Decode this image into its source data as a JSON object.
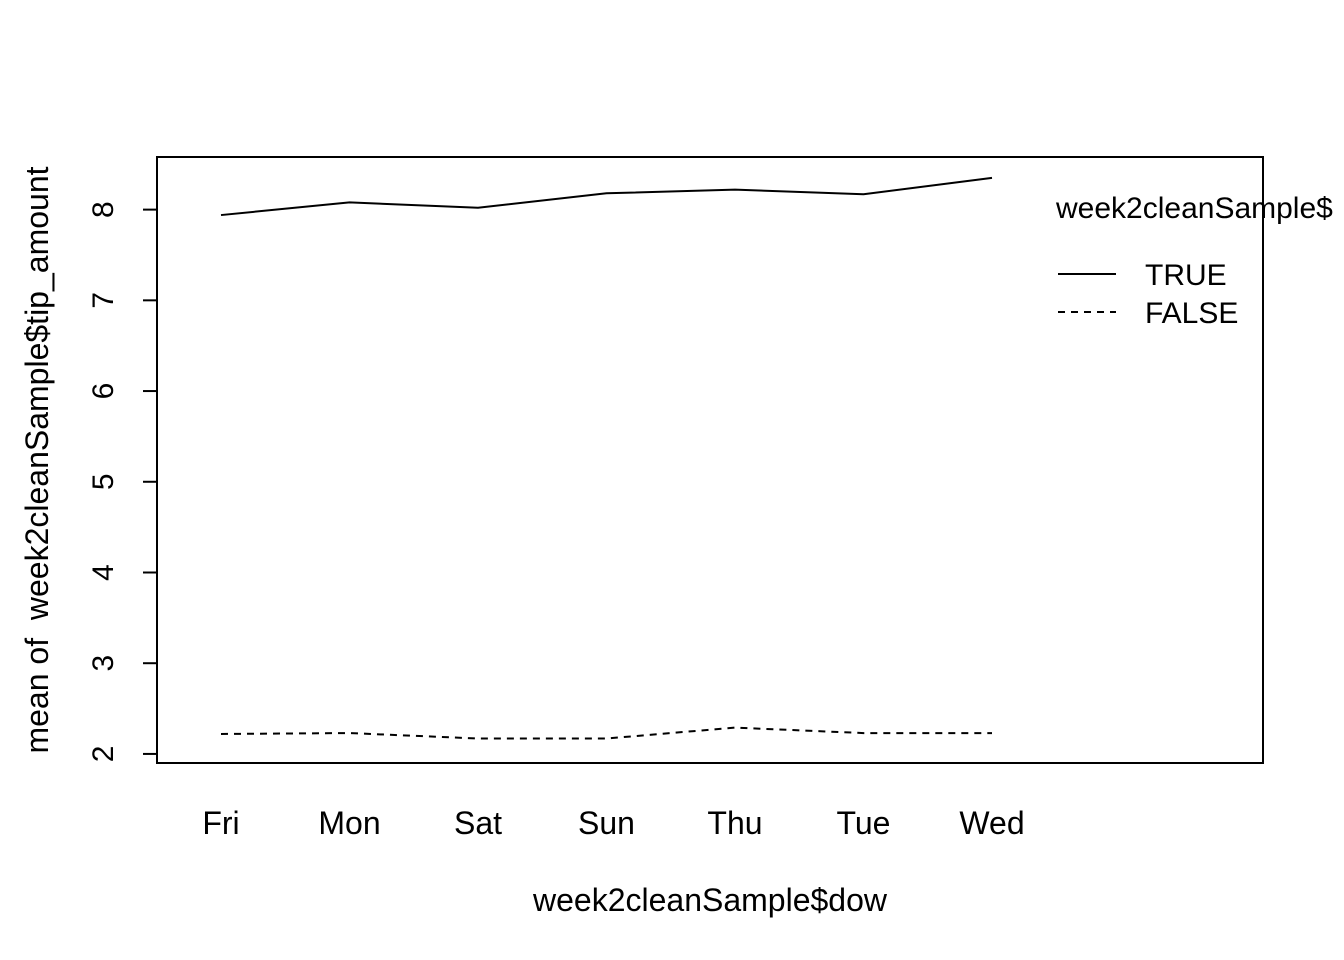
{
  "chart_data": {
    "type": "line",
    "title": "",
    "xlabel": "week2cleanSample$dow",
    "ylabel": "mean of  week2cleanSample$tip_amount",
    "categories": [
      "Fri",
      "Mon",
      "Sat",
      "Sun",
      "Thu",
      "Tue",
      "Wed"
    ],
    "ylim": [
      1.9,
      8.58
    ],
    "yticks": [
      2,
      3,
      4,
      5,
      6,
      7,
      8
    ],
    "grid": false,
    "legend": {
      "title": "week2cleanSample$",
      "placement": "top-right, inside plot"
    },
    "series": [
      {
        "name": "TRUE",
        "line_style": "solid",
        "color": "#000000",
        "values": [
          7.94,
          8.08,
          8.02,
          8.18,
          8.22,
          8.17,
          8.35
        ]
      },
      {
        "name": "FALSE",
        "line_style": "dashed",
        "color": "#000000",
        "values": [
          2.22,
          2.23,
          2.17,
          2.17,
          2.29,
          2.23,
          2.23
        ]
      }
    ]
  }
}
